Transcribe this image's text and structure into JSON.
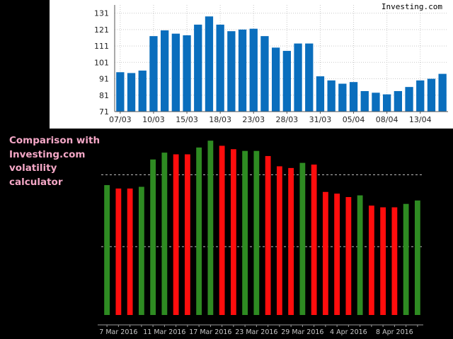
{
  "brand": "Investing.com",
  "caption_lines": [
    "Comparison with",
    "Investing.com",
    "volatility calculator"
  ],
  "chart_data": [
    {
      "type": "bar",
      "title": "",
      "xlabel": "",
      "ylabel": "",
      "ylim": [
        71,
        136
      ],
      "yticks": [
        71,
        81,
        91,
        101,
        111,
        121,
        131
      ],
      "xticks": [
        {
          "label": "07/03",
          "index": 0
        },
        {
          "label": "10/03",
          "index": 3
        },
        {
          "label": "15/03",
          "index": 6
        },
        {
          "label": "18/03",
          "index": 9
        },
        {
          "label": "23/03",
          "index": 12
        },
        {
          "label": "28/03",
          "index": 15
        },
        {
          "label": "31/03",
          "index": 18
        },
        {
          "label": "05/04",
          "index": 21
        },
        {
          "label": "08/04",
          "index": 24
        },
        {
          "label": "13/04",
          "index": 27
        }
      ],
      "values": [
        95,
        94.5,
        96,
        117,
        120.5,
        118.5,
        117.5,
        124,
        129,
        124,
        120,
        121,
        121.5,
        117,
        110,
        108,
        112.5,
        112.5,
        92.5,
        90,
        88,
        89,
        83.5,
        82.5,
        81.5,
        83.5,
        86,
        90,
        91,
        94
      ],
      "grid": true,
      "bar_color": "#0a6ebd"
    },
    {
      "type": "bar",
      "title": "",
      "xlabel": "",
      "ylabel": "",
      "ylim": [
        0,
        100
      ],
      "x_labels": [
        "7 Mar 2016",
        "11 Mar 2016",
        "17 Mar 2016",
        "23 Mar 2016",
        "29 Mar 2016",
        "4 Apr 2016",
        "8 Apr 2016"
      ],
      "x_label_positions": [
        1,
        5,
        9,
        13,
        17,
        21,
        25
      ],
      "reference_lines": [
        82,
        40
      ],
      "values": [
        76,
        74,
        74,
        75,
        91,
        95,
        94,
        94,
        98,
        102,
        99,
        97,
        96,
        96,
        93,
        87,
        86,
        89,
        88,
        72,
        71,
        69,
        70,
        64,
        63,
        63,
        65,
        67
      ],
      "directions": [
        "up",
        "down",
        "down",
        "up",
        "up",
        "up",
        "down",
        "down",
        "up",
        "up",
        "down",
        "down",
        "up",
        "up",
        "down",
        "down",
        "down",
        "up",
        "down",
        "down",
        "down",
        "down",
        "up",
        "down",
        "down",
        "down",
        "up",
        "up"
      ],
      "colors": {
        "up": "#2e8b22",
        "down": "#ff0d0d"
      }
    }
  ]
}
